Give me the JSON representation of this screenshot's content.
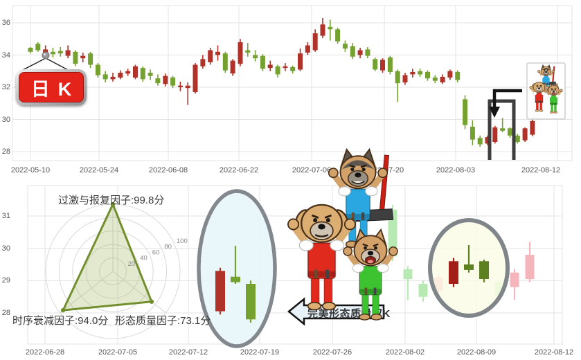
{
  "page": {
    "background": "#ffffff"
  },
  "kline_sign": {
    "label": "日K",
    "bg_color": "#e4231b",
    "text_color": "#ffffff"
  },
  "pattern_arrow": {
    "label": "完美形态质量双K"
  },
  "radar": {
    "factors": [
      {
        "name": "过激与报复因子",
        "score_label": "过激与报复因子:99.8分",
        "value": 99.8
      },
      {
        "name": "时序衰减因子",
        "score_label": "时序衰减因子:94.0分",
        "value": 94.0
      },
      {
        "name": "形态质量因子",
        "score_label": "形态质量因子:73.1分",
        "value": 73.1
      }
    ],
    "ticks": [
      20,
      40,
      60,
      80,
      100
    ],
    "max": 100,
    "line_color": "#728e2d",
    "fill_color": "rgba(150,175,80,0.28)"
  },
  "colors": {
    "up": "#b13228",
    "down": "#74a130",
    "up_faded": "#f6b4bb",
    "down_faded": "#b9e9b2",
    "up_strong": "#a32019",
    "down_strong": "#5d8020",
    "grid": "#e3e3e3",
    "axis_text": "#555555",
    "ellipse_fill": "#e7f5fa",
    "ellipse_stroke": "#82888d",
    "circle_fill": "#fbfbe6",
    "circle_stroke": "#7f8589"
  },
  "chart_data": [
    {
      "type": "candlestick",
      "title": "日K",
      "panel": "top",
      "ylim": [
        27.4,
        37.1
      ],
      "y_ticks": [
        28,
        30,
        32,
        34,
        36
      ],
      "x_ticks": [
        "2022-05-10",
        "2022-05-24",
        "2022-06-08",
        "2022-06-22",
        "2022-07-06",
        "2022-07-20",
        "2022-08-03",
        "2022-08-12"
      ],
      "columns": [
        "date",
        "open",
        "close",
        "low",
        "high"
      ],
      "candles": [
        [
          "2022-05-10",
          34.45,
          34.2,
          34.1,
          34.5
        ],
        [
          "2022-05-11",
          34.7,
          34.3,
          34.2,
          34.8
        ],
        [
          "2022-05-12",
          33.9,
          34.35,
          33.75,
          34.6
        ],
        [
          "2022-05-13",
          34.2,
          34.05,
          33.85,
          34.45
        ],
        [
          "2022-05-16",
          34.25,
          34.1,
          33.9,
          34.5
        ],
        [
          "2022-05-17",
          33.95,
          34.3,
          33.8,
          34.6
        ],
        [
          "2022-05-18",
          34.2,
          33.45,
          33.3,
          34.3
        ],
        [
          "2022-05-19",
          33.8,
          33.95,
          33.55,
          34.15
        ],
        [
          "2022-05-20",
          34.1,
          33.4,
          33.2,
          34.2
        ],
        [
          "2022-05-23",
          33.4,
          32.75,
          32.6,
          33.5
        ],
        [
          "2022-05-24",
          32.8,
          32.5,
          32.3,
          33.0
        ],
        [
          "2022-05-25",
          32.5,
          32.65,
          32.35,
          32.9
        ],
        [
          "2022-05-26",
          32.6,
          32.9,
          32.5,
          33.05
        ],
        [
          "2022-05-27",
          32.85,
          33.0,
          32.7,
          33.15
        ],
        [
          "2022-05-30",
          32.6,
          33.3,
          32.5,
          33.4
        ],
        [
          "2022-05-31",
          33.2,
          32.5,
          32.35,
          33.3
        ],
        [
          "2022-06-01",
          32.9,
          32.7,
          32.45,
          33.1
        ],
        [
          "2022-06-02",
          32.55,
          32.25,
          32.1,
          32.8
        ],
        [
          "2022-06-06",
          32.2,
          32.7,
          32.05,
          32.85
        ],
        [
          "2022-06-07",
          32.6,
          32.1,
          31.95,
          32.7
        ],
        [
          "2022-06-08",
          32.0,
          32.1,
          31.75,
          32.35
        ],
        [
          "2022-06-09",
          31.95,
          32.1,
          30.9,
          32.3
        ],
        [
          "2022-06-10",
          31.7,
          33.4,
          31.6,
          33.5
        ],
        [
          "2022-06-13",
          33.3,
          33.75,
          33.15,
          34.0
        ],
        [
          "2022-06-14",
          33.55,
          34.3,
          33.4,
          34.45
        ],
        [
          "2022-06-15",
          34.0,
          34.2,
          33.65,
          34.6
        ],
        [
          "2022-06-16",
          34.1,
          33.05,
          32.9,
          34.2
        ],
        [
          "2022-06-17",
          32.85,
          33.65,
          32.7,
          33.75
        ],
        [
          "2022-06-20",
          33.45,
          34.8,
          33.3,
          35.0
        ],
        [
          "2022-06-21",
          34.3,
          34.15,
          33.9,
          34.75
        ],
        [
          "2022-06-22",
          34.0,
          33.8,
          33.6,
          34.3
        ],
        [
          "2022-06-23",
          33.95,
          33.15,
          33.0,
          34.05
        ],
        [
          "2022-06-24",
          33.2,
          33.4,
          33.0,
          33.65
        ],
        [
          "2022-06-27",
          33.3,
          32.8,
          32.6,
          33.4
        ],
        [
          "2022-06-28",
          33.2,
          33.3,
          33.0,
          33.5
        ],
        [
          "2022-06-29",
          33.25,
          33.0,
          32.85,
          33.35
        ],
        [
          "2022-06-30",
          33.1,
          34.1,
          33.0,
          34.4
        ],
        [
          "2022-07-01",
          34.15,
          34.6,
          34.0,
          34.8
        ],
        [
          "2022-07-04",
          34.3,
          35.35,
          34.2,
          35.6
        ],
        [
          "2022-07-05",
          35.2,
          35.9,
          35.05,
          36.3
        ],
        [
          "2022-07-06",
          35.75,
          35.6,
          34.9,
          36.2
        ],
        [
          "2022-07-07",
          35.6,
          34.85,
          34.7,
          35.7
        ],
        [
          "2022-07-08",
          34.7,
          34.4,
          34.2,
          34.9
        ],
        [
          "2022-07-11",
          34.55,
          33.9,
          33.75,
          34.75
        ],
        [
          "2022-07-12",
          34.0,
          34.3,
          33.8,
          34.45
        ],
        [
          "2022-07-13",
          34.35,
          33.95,
          33.8,
          34.5
        ],
        [
          "2022-07-14",
          33.75,
          33.1,
          33.0,
          33.85
        ],
        [
          "2022-07-15",
          33.05,
          33.7,
          32.9,
          33.8
        ],
        [
          "2022-07-18",
          33.85,
          32.95,
          32.8,
          33.95
        ],
        [
          "2022-07-19",
          33.0,
          32.25,
          31.1,
          33.1
        ],
        [
          "2022-07-20",
          32.3,
          32.75,
          32.15,
          32.9
        ],
        [
          "2022-07-21",
          32.8,
          32.95,
          32.6,
          33.15
        ],
        [
          "2022-07-22",
          33.0,
          32.8,
          32.65,
          33.15
        ],
        [
          "2022-07-25",
          32.95,
          32.55,
          32.4,
          33.05
        ],
        [
          "2022-07-26",
          32.6,
          32.4,
          32.25,
          32.75
        ],
        [
          "2022-07-27",
          32.3,
          32.65,
          32.2,
          32.8
        ],
        [
          "2022-07-28",
          32.6,
          33.0,
          32.45,
          33.1
        ],
        [
          "2022-07-29",
          32.95,
          32.45,
          32.3,
          33.05
        ],
        [
          "2022-08-01",
          31.25,
          29.65,
          29.4,
          31.5
        ],
        [
          "2022-08-02",
          29.55,
          28.75,
          28.4,
          29.95
        ],
        [
          "2022-08-03",
          28.85,
          28.45,
          28.3,
          29.0
        ],
        [
          "2022-08-04",
          28.5,
          28.9,
          28.4,
          29.0
        ],
        [
          "2022-08-05",
          28.6,
          29.5,
          28.5,
          29.6
        ],
        [
          "2022-08-08",
          29.45,
          29.3,
          29.2,
          30.1
        ],
        [
          "2022-08-09",
          29.45,
          29.0,
          28.85,
          29.5
        ],
        [
          "2022-08-10",
          29.0,
          28.6,
          28.5,
          29.1
        ],
        [
          "2022-08-11",
          28.7,
          29.45,
          28.6,
          29.5
        ],
        [
          "2022-08-12",
          29.05,
          29.9,
          28.95,
          30.25
        ]
      ],
      "bracket_highlight_dates": [
        "2022-08-05",
        "2022-08-08",
        "2022-08-09"
      ]
    },
    {
      "type": "candlestick",
      "panel": "bottom",
      "ylim": [
        27.0,
        31.95
      ],
      "y_ticks": [
        28,
        29,
        30,
        31
      ],
      "x_ticks": [
        "2022-06-28",
        "2022-07-05",
        "2022-07-12",
        "2022-07-19",
        "2022-07-26",
        "2022-08-02",
        "2022-08-09",
        "2022-08-12"
      ],
      "columns": [
        "date",
        "open",
        "close",
        "low",
        "high"
      ],
      "candles": [
        [
          "2022-08-01",
          31.2,
          29.75,
          29.6,
          31.35
        ],
        [
          "2022-08-02",
          29.35,
          29.05,
          28.4,
          29.45
        ],
        [
          "2022-08-03",
          28.9,
          28.5,
          28.35,
          29.0
        ],
        [
          "2022-08-04",
          28.68,
          29.1,
          28.6,
          29.2
        ],
        [
          "2022-08-05",
          28.9,
          29.6,
          28.8,
          29.7
        ],
        [
          "2022-08-08",
          29.5,
          29.33,
          29.25,
          30.1
        ],
        [
          "2022-08-09",
          29.6,
          29.05,
          28.95,
          29.65
        ],
        [
          "2022-08-10",
          28.95,
          28.55,
          28.45,
          29.0
        ],
        [
          "2022-08-11",
          28.8,
          29.25,
          28.4,
          29.35
        ],
        [
          "2022-08-12",
          29.05,
          29.8,
          28.95,
          30.2
        ]
      ],
      "highlight_indexes": [
        4,
        5,
        6
      ],
      "pattern_template_candles": [
        [
          "2022-07-14",
          28.05,
          29.3,
          27.95,
          29.4
        ],
        [
          "2022-07-15",
          29.12,
          28.95,
          28.9,
          30.08
        ],
        [
          "2022-07-18",
          28.9,
          27.8,
          27.7,
          29.0
        ]
      ]
    }
  ],
  "decorations": {
    "dog_trio": [
      "blue-overalls-dog-with-hammer",
      "red-overalls-dog",
      "green-overalls-dog"
    ],
    "mini_dog_box": true,
    "down_arrow_from_box": true,
    "bracket_on_top_chart": true
  }
}
